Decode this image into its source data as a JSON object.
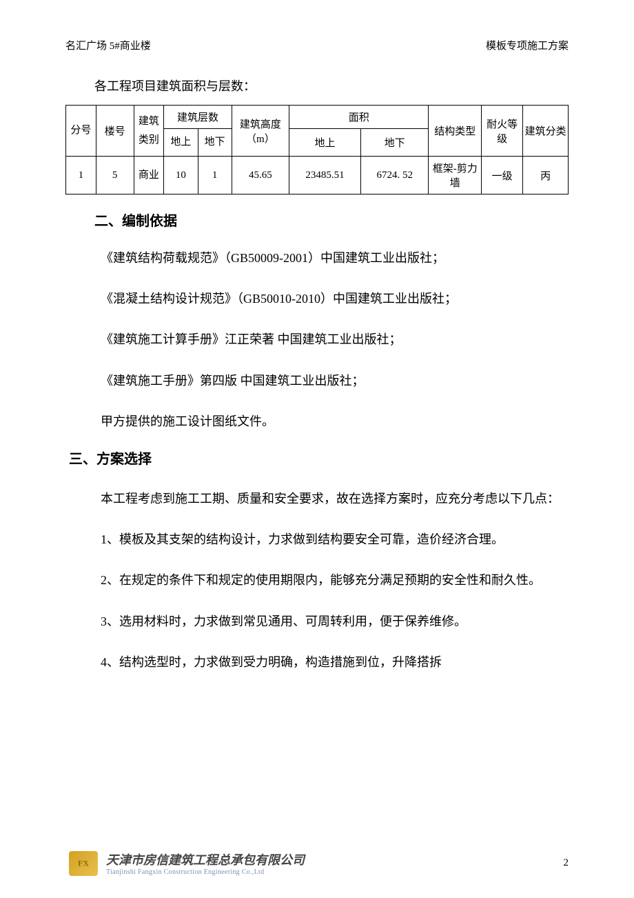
{
  "header": {
    "left": "名汇广场 5#商业楼",
    "right": "模板专项施工方案"
  },
  "intro": "各工程项目建筑面积与层数：",
  "table": {
    "headers": {
      "seq": "分号",
      "bldg_no": "楼号",
      "category": "建筑类别",
      "floors": "建筑层数",
      "floors_above": "地上",
      "floors_below": "地下",
      "height": "建筑高度（m）",
      "area": "面积",
      "area_above": "地上",
      "area_below": "地下",
      "structure": "结构类型",
      "fire": "耐火等级",
      "classification": "建筑分类"
    },
    "rows": [
      {
        "seq": "1",
        "bldg_no": "5",
        "category": "商业",
        "floors_above": "10",
        "floors_below": "1",
        "height": "45.65",
        "area_above": "23485.51",
        "area_below": "6724. 52",
        "structure": "框架-剪力墙",
        "fire": "一级",
        "classification": "丙"
      }
    ]
  },
  "section2": {
    "title": "二、编制依据",
    "items": [
      "《建筑结构荷载规范》（GB50009-2001）中国建筑工业出版社；",
      "《混凝土结构设计规范》（GB50010-2010）中国建筑工业出版社；",
      "《建筑施工计算手册》江正荣著 中国建筑工业出版社；",
      "《建筑施工手册》第四版 中国建筑工业出版社；",
      "甲方提供的施工设计图纸文件。"
    ]
  },
  "section3": {
    "title": "三、方案选择",
    "intro": "本工程考虑到施工工期、质量和安全要求，故在选择方案时，应充分考虑以下几点：",
    "items": [
      "1、模板及其支架的结构设计，力求做到结构要安全可靠，造价经济合理。",
      "2、在规定的条件下和规定的使用期限内，能够充分满足预期的安全性和耐久性。",
      "3、选用材料时，力求做到常见通用、可周转利用，便于保养维修。",
      "4、结构选型时，力求做到受力明确，构造措施到位，升降搭拆"
    ]
  },
  "footer": {
    "company_cn": "天津市房信建筑工程总承包有限公司",
    "company_en": "Tianjinshi Fangxin Construction Engineering Co.,Ltd",
    "page": "2"
  }
}
